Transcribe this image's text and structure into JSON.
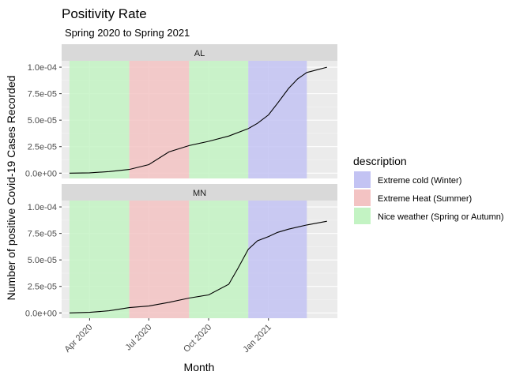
{
  "chart_data": {
    "type": "line",
    "title": "Positivity Rate",
    "subtitle": "Spring 2020 to Spring 2021",
    "xlabel": "Month",
    "ylabel": "Number of positive Covid-19 Cases Recorded",
    "x_ticks": [
      "Apr 2020",
      "Jul 2020",
      "Oct 2020",
      "Jan 2021"
    ],
    "x_tick_dates": [
      "2020-04-01",
      "2020-07-01",
      "2020-10-01",
      "2021-01-01"
    ],
    "xlim": [
      "2020-02-18",
      "2021-04-17"
    ],
    "y_ticks": [
      "0.0e+00",
      "2.5e-05",
      "5.0e-05",
      "7.5e-05",
      "1.0e-04"
    ],
    "y_tick_values": [
      0,
      2.5e-05,
      5e-05,
      7.5e-05,
      0.0001
    ],
    "ylim": [
      -5e-06,
      0.000106
    ],
    "grid": true,
    "legend": {
      "title": "description",
      "position": "right",
      "entries": [
        {
          "label": "Extreme cold (Winter)",
          "color": "#c3c3f3"
        },
        {
          "label": "Extreme Heat (Summer)",
          "color": "#f3c3c3"
        },
        {
          "label": "Nice weather (Spring or Autumn)",
          "color": "#c3f3c3"
        }
      ]
    },
    "season_bands": [
      {
        "start": "2020-03-01",
        "end": "2020-06-01",
        "description": "Nice weather (Spring or Autumn)"
      },
      {
        "start": "2020-06-01",
        "end": "2020-09-01",
        "description": "Extreme Heat (Summer)"
      },
      {
        "start": "2020-09-01",
        "end": "2020-12-01",
        "description": "Nice weather (Spring or Autumn)"
      },
      {
        "start": "2020-12-01",
        "end": "2021-03-01",
        "description": "Extreme cold (Winter)"
      }
    ],
    "panels": [
      {
        "facet": "AL",
        "x": [
          "2020-03-01",
          "2020-04-01",
          "2020-05-01",
          "2020-06-01",
          "2020-07-01",
          "2020-08-01",
          "2020-09-01",
          "2020-10-01",
          "2020-11-01",
          "2020-12-01",
          "2020-12-15",
          "2021-01-01",
          "2021-01-15",
          "2021-02-01",
          "2021-02-15",
          "2021-03-01",
          "2021-04-01"
        ],
        "y": [
          0,
          3e-07,
          1.5e-06,
          3.5e-06,
          8e-06,
          2e-05,
          2.6e-05,
          3e-05,
          3.5e-05,
          4.2e-05,
          4.7e-05,
          5.5e-05,
          6.6e-05,
          8e-05,
          8.9e-05,
          9.5e-05,
          0.0001
        ]
      },
      {
        "facet": "MN",
        "x": [
          "2020-03-01",
          "2020-04-01",
          "2020-05-01",
          "2020-06-01",
          "2020-07-01",
          "2020-08-01",
          "2020-09-01",
          "2020-10-01",
          "2020-11-01",
          "2020-11-15",
          "2020-12-01",
          "2020-12-15",
          "2021-01-01",
          "2021-01-15",
          "2021-02-01",
          "2021-03-01",
          "2021-04-01"
        ],
        "y": [
          0,
          5e-07,
          2e-06,
          5e-06,
          6.5e-06,
          1e-05,
          1.4e-05,
          1.7e-05,
          2.7e-05,
          4.2e-05,
          6e-05,
          6.8e-05,
          7.2e-05,
          7.6e-05,
          7.9e-05,
          8.3e-05,
          8.65e-05
        ]
      }
    ]
  }
}
